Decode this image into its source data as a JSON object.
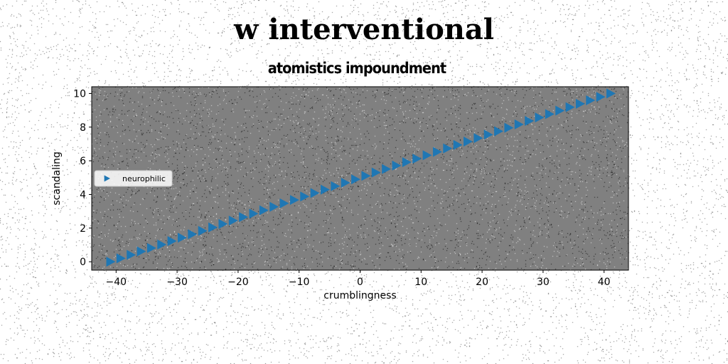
{
  "figure": {
    "suptitle": "w interventional"
  },
  "chart_data": {
    "type": "scatter",
    "title": "atomistics impoundment",
    "xlabel": "crumblingness",
    "ylabel": "scandaling",
    "xlim": [
      -44,
      44
    ],
    "ylim": [
      -0.5,
      10.4
    ],
    "xticks": [
      -40,
      -30,
      -20,
      -10,
      0,
      10,
      20,
      30,
      40
    ],
    "xtick_labels": [
      "−40",
      "−30",
      "−20",
      "−10",
      "0",
      "10",
      "20",
      "30",
      "40"
    ],
    "yticks": [
      0,
      2,
      4,
      6,
      8,
      10
    ],
    "ytick_labels": [
      "0",
      "2",
      "4",
      "6",
      "8",
      "10"
    ],
    "grid": false,
    "legend": {
      "placement": "center-left"
    },
    "marker": "triangle-right",
    "series": [
      {
        "name": "neurophilic",
        "color": "#1f77b4",
        "x_start": -41,
        "x_end": 41,
        "y_start": 0,
        "y_end": 10,
        "num_points": 50
      }
    ],
    "colors": {
      "axes_background": "#808080",
      "series": "#1f77b4"
    }
  }
}
